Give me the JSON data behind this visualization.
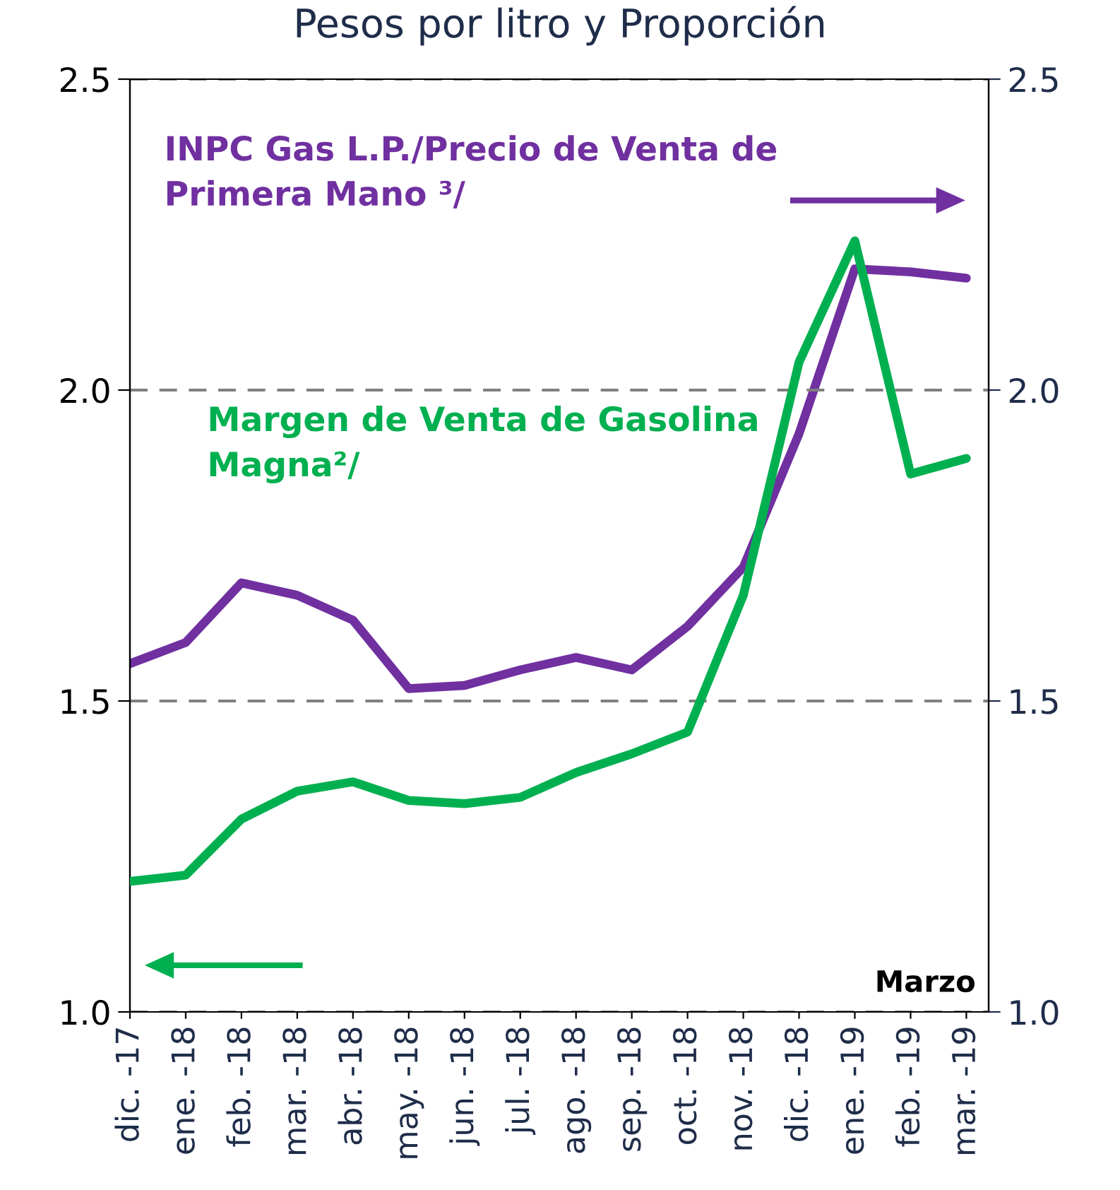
{
  "chart_data": {
    "type": "line",
    "title": "Pesos por litro y Proporción",
    "categories": [
      "dic. -17",
      "ene. -18",
      "feb. -18",
      "mar. -18",
      "abr. -18",
      "may. -18",
      "jun. -18",
      "jul. -18",
      "ago. -18",
      "sep. -18",
      "oct. -18",
      "nov. -18",
      "dic. -18",
      "ene. -19",
      "feb. -19",
      "mar. -19"
    ],
    "series": [
      {
        "name": "INPC Gas L.P./Precio de Venta de Primera Mano ³/",
        "color": "#7030a0",
        "axis": "y2",
        "values": [
          1.56,
          1.594,
          1.69,
          1.67,
          1.63,
          1.52,
          1.525,
          1.55,
          1.57,
          1.55,
          1.62,
          1.715,
          1.93,
          2.195,
          2.19,
          2.18
        ]
      },
      {
        "name": "Margen de Venta de Gasolina Magna²/",
        "color": "#00b050",
        "values": [
          1.21,
          1.22,
          1.31,
          1.355,
          1.37,
          1.34,
          1.335,
          1.345,
          1.385,
          1.415,
          1.45,
          1.67,
          2.045,
          2.24,
          1.865,
          1.89
        ]
      }
    ],
    "ylim": [
      1.0,
      2.5
    ],
    "yticks": [
      {
        "value": 1.0,
        "label": "1.0"
      },
      {
        "value": 1.5,
        "label": "1.5"
      },
      {
        "value": 2.0,
        "label": "2.0"
      },
      {
        "value": 2.5,
        "label": "2.5"
      }
    ],
    "y2lim": [
      1.0,
      2.5
    ],
    "y2ticks": [
      {
        "value": 1.0,
        "label": "1.0"
      },
      {
        "value": 1.5,
        "label": "1.5"
      },
      {
        "value": 2.0,
        "label": "2.0"
      },
      {
        "value": 2.5,
        "label": "2.5"
      }
    ],
    "grid": "y",
    "legend": false,
    "marker": "none",
    "line_style": "solid",
    "annotations": [
      "Marzo"
    ]
  }
}
